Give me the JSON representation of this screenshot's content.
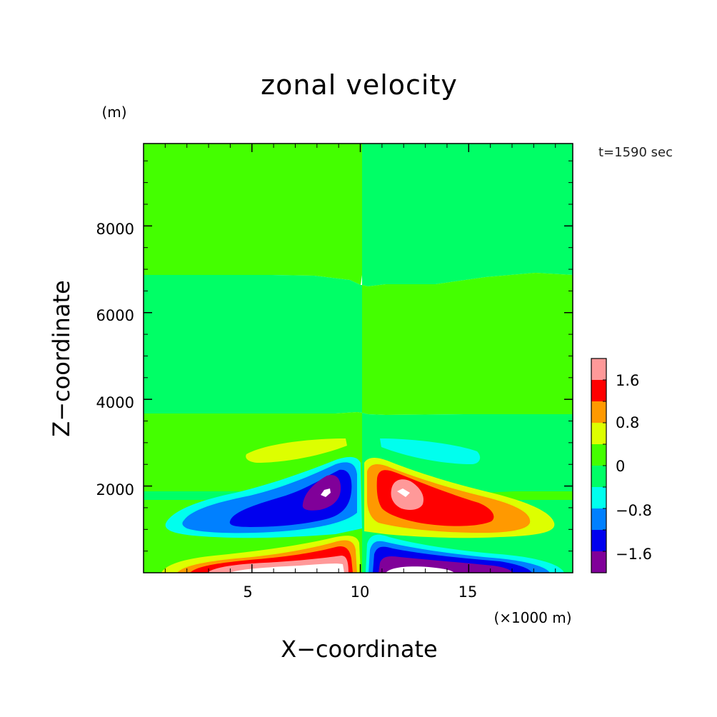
{
  "chart_data": {
    "type": "heatmap",
    "title": "zonal velocity",
    "xlabel": "X−coordinate",
    "ylabel": "Z−coordinate",
    "x_unit": "(×1000 m)",
    "y_unit": "(m)",
    "time_label": "t=1590 sec",
    "xlim": [
      0,
      19.8
    ],
    "ylim": [
      0,
      9900
    ],
    "x_ticks": [
      5,
      10,
      15
    ],
    "x_tick_labels": [
      "5",
      "10",
      "15"
    ],
    "y_ticks": [
      2000,
      4000,
      6000,
      8000
    ],
    "y_tick_labels": [
      "2000",
      "4000",
      "6000",
      "8000"
    ],
    "colorbar": {
      "levels": [
        -2.0,
        -1.6,
        -1.2,
        -0.8,
        -0.4,
        0.0,
        0.4,
        0.8,
        1.2,
        1.6,
        2.0
      ],
      "labels": [
        "−1.6",
        "−0.8",
        "0",
        "0.8",
        "1.6"
      ],
      "label_values": [
        -1.6,
        -0.8,
        0,
        0.8,
        1.6
      ],
      "colors": [
        "#800099",
        "#0000ee",
        "#0080ff",
        "#00ffee",
        "#00ff66",
        "#44ff00",
        "#ddff00",
        "#ff9900",
        "#ff0000",
        "#ff9999"
      ]
    },
    "regions": [
      {
        "name": "upper-left",
        "level": 0.2,
        "x": [
          0,
          10
        ],
        "z": [
          6900,
          9900
        ]
      },
      {
        "name": "upper-right",
        "level": -0.2,
        "x": [
          10,
          19.8
        ],
        "z": [
          6700,
          9900
        ]
      },
      {
        "name": "mid-left",
        "level": -0.2,
        "x": [
          0,
          10
        ],
        "z": [
          3700,
          6900
        ]
      },
      {
        "name": "mid-right",
        "level": 0.2,
        "x": [
          10,
          19.8
        ],
        "z": [
          3700,
          6700
        ]
      },
      {
        "name": "lower-left",
        "level": 0.2,
        "x": [
          0,
          10
        ],
        "z": [
          2000,
          3700
        ]
      },
      {
        "name": "lower-right",
        "level": -0.2,
        "x": [
          10,
          19.8
        ],
        "z": [
          2000,
          3700
        ]
      },
      {
        "name": "positive-band-left",
        "level": 0.6,
        "x": [
          4.7,
          9.4
        ],
        "z": [
          2600,
          3200
        ]
      },
      {
        "name": "negative-band-right",
        "level": -0.6,
        "x": [
          11.0,
          16.4
        ],
        "z": [
          2600,
          3200
        ]
      },
      {
        "name": "negative-jet-left",
        "level": -1.8,
        "x": [
          0.9,
          9.8
        ],
        "z": [
          500,
          2700
        ]
      },
      {
        "name": "negative-jet-left-core",
        "level": -2.0,
        "x": [
          8.2,
          8.7
        ],
        "z": [
          1750,
          1950
        ]
      },
      {
        "name": "positive-jet-right",
        "level": 1.8,
        "x": [
          10.2,
          19.3
        ],
        "z": [
          500,
          2700
        ]
      },
      {
        "name": "positive-jet-right-core",
        "level": 2.0,
        "x": [
          11.7,
          12.3
        ],
        "z": [
          1750,
          1950
        ]
      },
      {
        "name": "positive-surface-left",
        "level": 1.8,
        "x": [
          0.8,
          9.8
        ],
        "z": [
          0,
          700
        ]
      },
      {
        "name": "negative-surface-right",
        "level": -1.8,
        "x": [
          10.3,
          19.8
        ],
        "z": [
          0,
          700
        ]
      }
    ]
  }
}
